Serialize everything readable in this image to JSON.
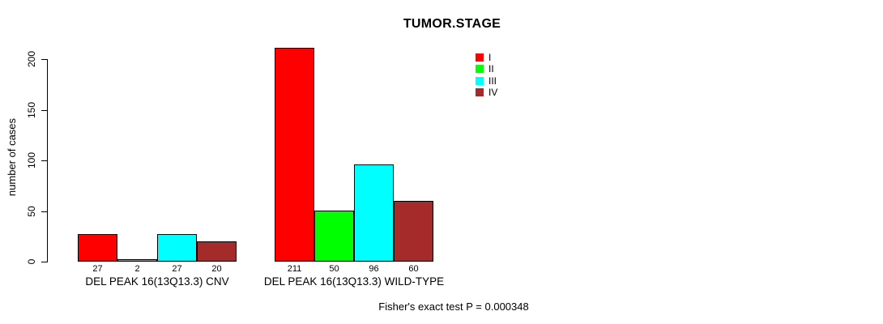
{
  "chart_data": {
    "type": "bar",
    "title": "TUMOR.STAGE",
    "ylabel": "number of cases",
    "xlabel": "",
    "categories": [
      "DEL PEAK 16(13Q13.3) CNV",
      "DEL PEAK 16(13Q13.3) WILD-TYPE"
    ],
    "series": [
      {
        "name": "I",
        "color": "#FF0000",
        "values": [
          27,
          211
        ]
      },
      {
        "name": "II",
        "color": "#00FF00",
        "values": [
          2,
          50
        ]
      },
      {
        "name": "III",
        "color": "#00FFFF",
        "values": [
          27,
          96
        ]
      },
      {
        "name": "IV",
        "color": "#A52A2A",
        "values": [
          20,
          60
        ]
      }
    ],
    "yticks": [
      0,
      50,
      100,
      150,
      200
    ],
    "ylim": [
      0,
      211
    ],
    "bar_value_labels": true,
    "grid": false,
    "legend": {
      "position": "top-right-inside",
      "entries": [
        "I",
        "II",
        "III",
        "IV"
      ]
    },
    "annotation": "Fisher's exact test P = 0.000348",
    "bar_border_color": "#000000",
    "background_color": "#FFFFFF"
  }
}
